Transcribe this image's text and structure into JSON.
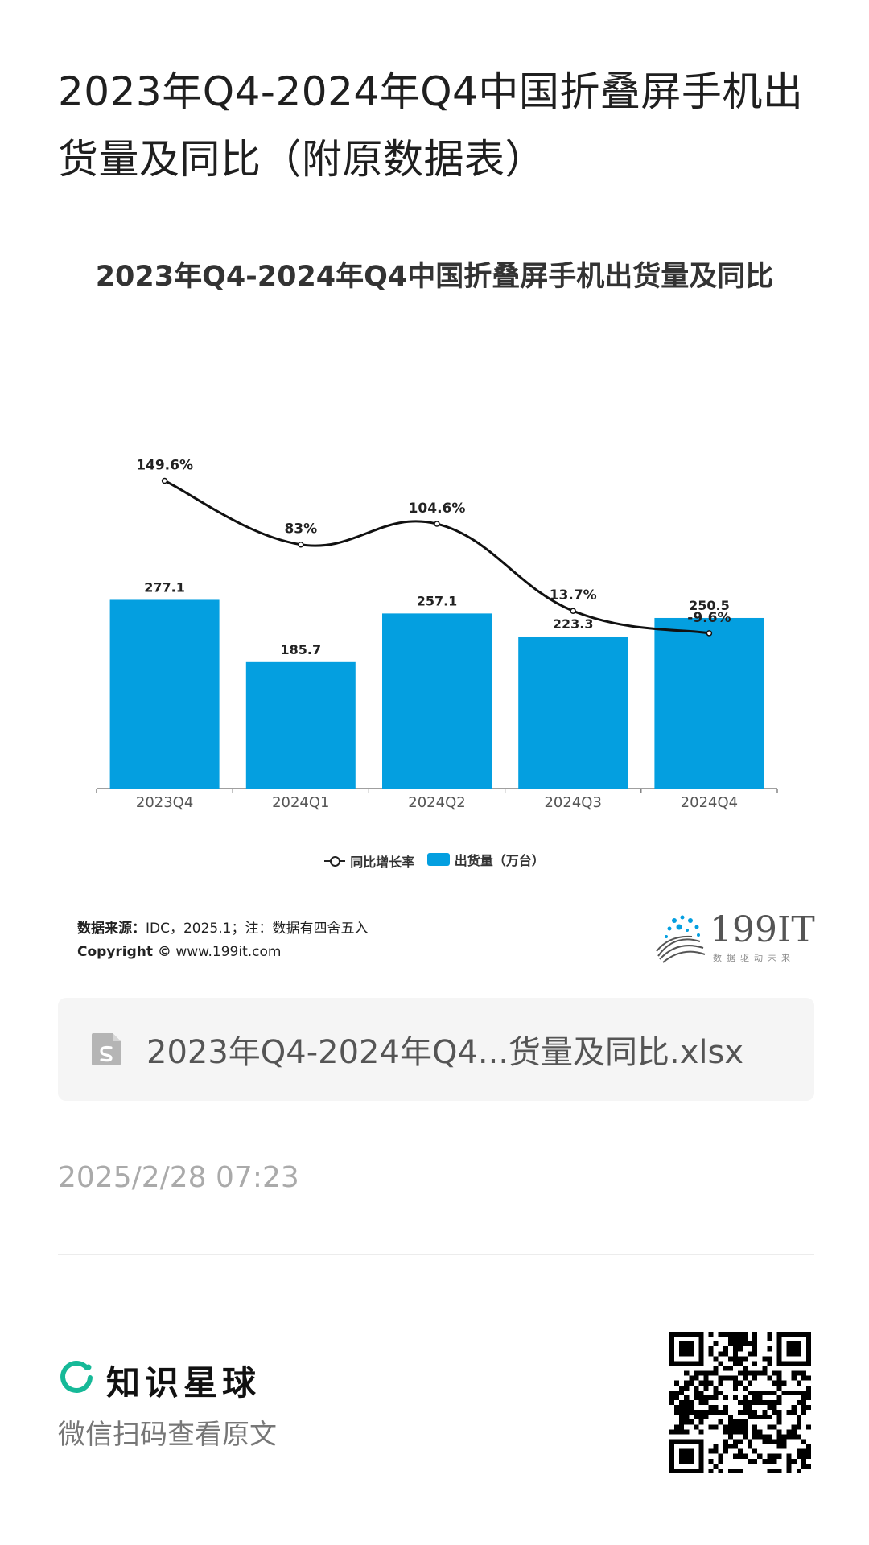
{
  "page": {
    "title": "2023年Q4-2024年Q4中国折叠屏手机出货量及同比（附原数据表）"
  },
  "chart_data": {
    "type": "bar",
    "title": "2023年Q4-2024年Q4中国折叠屏手机出货量及同比",
    "categories": [
      "2023Q4",
      "2024Q1",
      "2024Q2",
      "2024Q3",
      "2024Q4"
    ],
    "series": [
      {
        "name": "出货量（万台）",
        "type": "bar",
        "color": "#049fe0",
        "values": [
          277.1,
          185.7,
          257.1,
          223.3,
          250.5
        ],
        "labels": [
          "277.1",
          "185.7",
          "257.1",
          "223.3",
          "250.5"
        ]
      },
      {
        "name": "同比增长率",
        "type": "line",
        "color": "#111111",
        "values": [
          149.6,
          83,
          104.6,
          13.7,
          -9.6
        ],
        "labels": [
          "149.6%",
          "83%",
          "104.6%",
          "13.7%",
          "-9.6%"
        ]
      }
    ],
    "legend_position": "bottom",
    "grid": false
  },
  "legend": {
    "line_label": "同比增长率",
    "bar_label": "出货量（万台）"
  },
  "source": {
    "label": "数据来源：",
    "text": "IDC，2025.1；注：数据有四舍五入",
    "copyright_label": "Copyright ©",
    "copyright_site": "www.199it.com"
  },
  "brand": {
    "name": "199IT",
    "tagline": "数据驱动未来"
  },
  "attachment": {
    "filename": "2023年Q4-2024年Q4...货量及同比.xlsx",
    "icon": "spreadsheet-file-icon"
  },
  "post": {
    "time": "2025/2/28 07:23"
  },
  "footer": {
    "app_name": "知识星球",
    "hint": "微信扫码查看原文",
    "accent": "#16b998"
  }
}
